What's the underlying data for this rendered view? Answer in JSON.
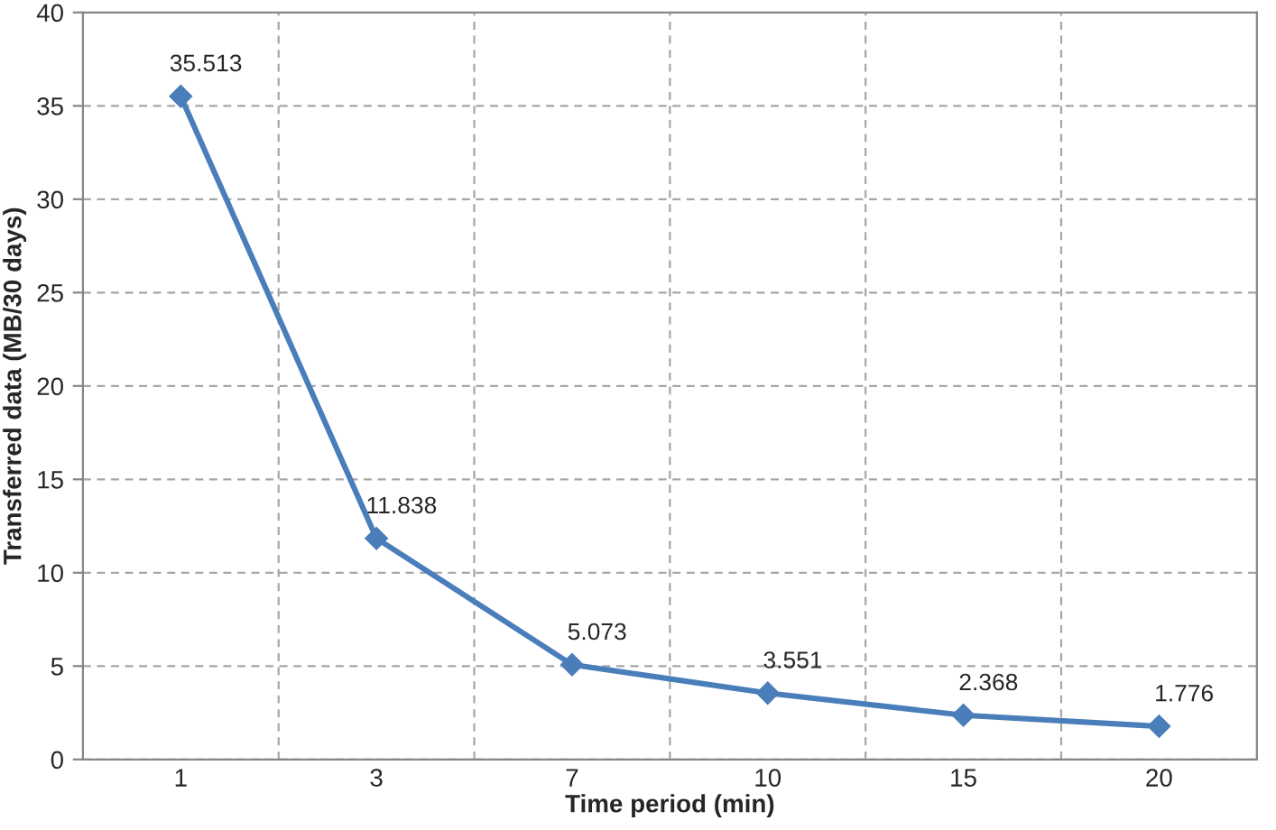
{
  "chart_data": {
    "type": "line",
    "xlabel": "Time period (min)",
    "ylabel": "Transferred data (MB/30 days)",
    "categories": [
      "1",
      "3",
      "7",
      "10",
      "15",
      "20"
    ],
    "series": [
      {
        "color": "#4a7ebb",
        "values": [
          35.513,
          11.838,
          5.073,
          3.551,
          2.368,
          1.776
        ]
      }
    ],
    "ylim": [
      0,
      40
    ],
    "yticks": [
      0,
      5,
      10,
      15,
      20,
      25,
      30,
      35,
      40
    ],
    "grid": true,
    "marker": "diamond",
    "line_style": "solid",
    "data_labels": true
  }
}
